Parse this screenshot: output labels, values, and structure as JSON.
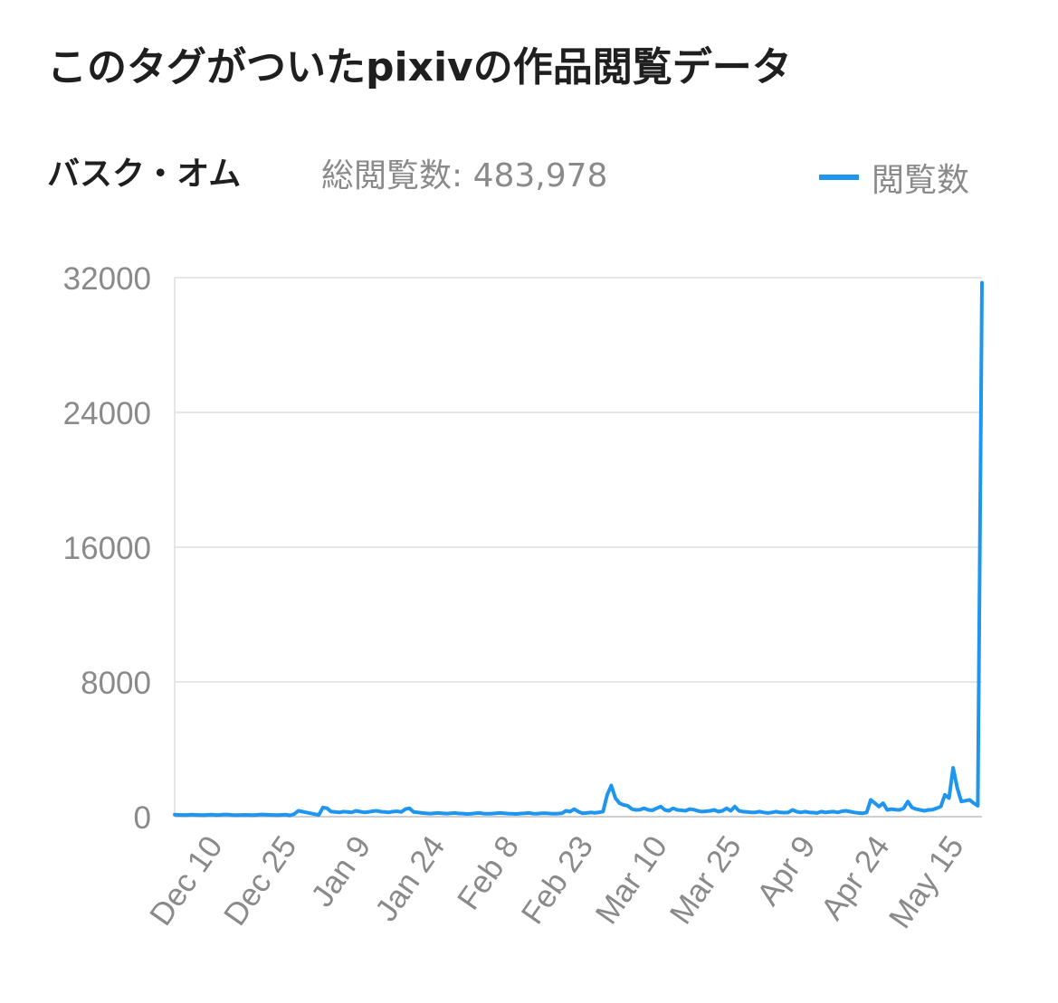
{
  "header": {
    "title": "このタグがついたpixivの作品閲覧データ",
    "tag_name": "バスク・オム",
    "total_views": "総閲覧数: 483,978"
  },
  "colors": {
    "line": "#1e96f0",
    "grid": "#e6e6e6",
    "axis_text": "#8a8a8a",
    "title_text": "#1f1f1f"
  },
  "chart_data": {
    "type": "line",
    "title": "このタグがついたpixivの作品閲覧データ",
    "xlabel": "",
    "ylabel": "",
    "ylim": [
      0,
      32000
    ],
    "yticks": [
      0,
      8000,
      16000,
      24000,
      32000
    ],
    "grid": true,
    "legend_position": "top-right",
    "x_tick_labels": [
      "Dec 10",
      "Dec 25",
      "Jan 9",
      "Jan 24",
      "Feb 8",
      "Feb 23",
      "Mar 10",
      "Mar 25",
      "Apr 9",
      "Apr 24",
      "May 15"
    ],
    "series": [
      {
        "name": "閲覧数",
        "values": [
          120,
          110,
          100,
          100,
          120,
          110,
          100,
          90,
          110,
          120,
          100,
          110,
          130,
          120,
          100,
          90,
          100,
          110,
          100,
          90,
          110,
          130,
          120,
          110,
          100,
          90,
          110,
          120,
          80,
          150,
          350,
          300,
          250,
          200,
          150,
          100,
          550,
          500,
          300,
          280,
          250,
          300,
          280,
          260,
          350,
          300,
          260,
          280,
          320,
          350,
          300,
          280,
          260,
          300,
          320,
          280,
          450,
          500,
          280,
          250,
          220,
          200,
          180,
          200,
          220,
          200,
          180,
          200,
          220,
          190,
          180,
          160,
          170,
          200,
          220,
          180,
          170,
          180,
          200,
          220,
          200,
          180,
          170,
          160,
          190,
          200,
          220,
          180,
          170,
          200,
          210,
          190,
          170,
          180,
          200,
          350,
          300,
          450,
          300,
          200,
          220,
          250,
          230,
          260,
          300,
          1300,
          1850,
          1100,
          800,
          700,
          650,
          450,
          400,
          420,
          500,
          400,
          380,
          500,
          600,
          400,
          350,
          500,
          400,
          380,
          350,
          450,
          420,
          350,
          300,
          320,
          350,
          400,
          300,
          350,
          500,
          350,
          600,
          350,
          300,
          280,
          250,
          260,
          300,
          250,
          220,
          250,
          300,
          250,
          240,
          260,
          400,
          300,
          250,
          300,
          260,
          240,
          220,
          300,
          250,
          280,
          300,
          250,
          320,
          350,
          300,
          250,
          220,
          200,
          250,
          1000,
          800,
          600,
          800,
          400,
          450,
          420,
          400,
          500,
          900,
          550,
          450,
          400,
          350,
          400,
          420,
          500,
          600,
          1300,
          1100,
          2900,
          1700,
          900,
          950,
          1000,
          800,
          650,
          31700
        ]
      }
    ]
  }
}
